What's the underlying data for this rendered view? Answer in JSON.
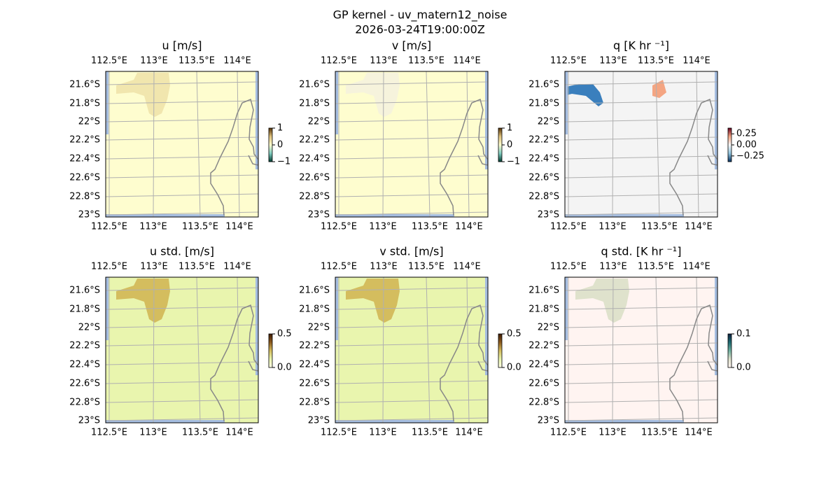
{
  "title": "GP kernel - uv_matern12_noise",
  "subtitle": "2026-03-24T19:00:00Z",
  "axes": {
    "lon_labels": [
      "112.5°E",
      "113°E",
      "113.5°E",
      "114°E"
    ],
    "lat_labels": [
      "21.6°S",
      "21.8°S",
      "22°S",
      "22.2°S",
      "22.4°S",
      "22.6°S",
      "22.8°S",
      "23°S"
    ]
  },
  "panels": [
    {
      "title": "u [m/s]",
      "field_color": "#fefdcf",
      "patch_colors": [
        "#f1e6ae"
      ],
      "colorbar": {
        "lim": [
          -1,
          1
        ],
        "colors": [
          "#003c30",
          "#80cdc1",
          "#fefdcf",
          "#dfc27d",
          "#543005"
        ],
        "ticks": [
          1,
          0,
          {
            "value": -1,
            "label": "−1"
          }
        ]
      }
    },
    {
      "title": "v [m/s]",
      "field_color": "#fefdcf",
      "patch_colors": [
        "#f6f3dc"
      ],
      "colorbar": {
        "lim": [
          -1,
          1
        ],
        "colors": [
          "#003c30",
          "#80cdc1",
          "#fefdcf",
          "#dfc27d",
          "#543005"
        ],
        "ticks": [
          1,
          0,
          {
            "value": -1,
            "label": "−1"
          }
        ]
      }
    },
    {
      "title": "q [K hr ⁻¹]",
      "field_color": "#f4f4f4",
      "patch_colors": [
        "#3a7fbd",
        "#f4a582"
      ],
      "colorbar": {
        "lim": [
          -0.38,
          0.38
        ],
        "colors": [
          "#053061",
          "#92c5de",
          "#f7f7f7",
          "#f4a582",
          "#67001f"
        ],
        "ticks": [
          0.25,
          {
            "value": 0,
            "label": "0.00"
          },
          {
            "value": -0.25,
            "label": "−0.25"
          }
        ]
      }
    },
    {
      "title": "u std. [m/s]",
      "field_color": "#e9f5ae",
      "patch_colors": [
        "#d4bd5e"
      ],
      "colorbar": {
        "lim": [
          0,
          0.5
        ],
        "colors": [
          "#ffffe5",
          "#e9f5ae",
          "#d4bd5e",
          "#8c5a1e",
          "#3d1a05"
        ],
        "ticks": [
          0.5,
          {
            "value": 0,
            "label": "0.0"
          }
        ]
      }
    },
    {
      "title": "v std. [m/s]",
      "field_color": "#e9f5ae",
      "patch_colors": [
        "#d4bd5e"
      ],
      "colorbar": {
        "lim": [
          0,
          0.5
        ],
        "colors": [
          "#ffffe5",
          "#e9f5ae",
          "#d4bd5e",
          "#8c5a1e",
          "#3d1a05"
        ],
        "ticks": [
          0.5,
          {
            "value": 0,
            "label": "0.0"
          }
        ]
      }
    },
    {
      "title": "q std. [K hr ⁻¹]",
      "field_color": "#fff4f1",
      "patch_colors": [
        "#dfe2cc"
      ],
      "colorbar": {
        "lim": [
          0,
          0.1
        ],
        "colors": [
          "#fff4f1",
          "#dfe2cc",
          "#6fb0a0",
          "#1e6a70",
          "#0b2040"
        ],
        "ticks": [
          0.1,
          {
            "value": 0,
            "label": "0.0"
          }
        ]
      }
    }
  ]
}
